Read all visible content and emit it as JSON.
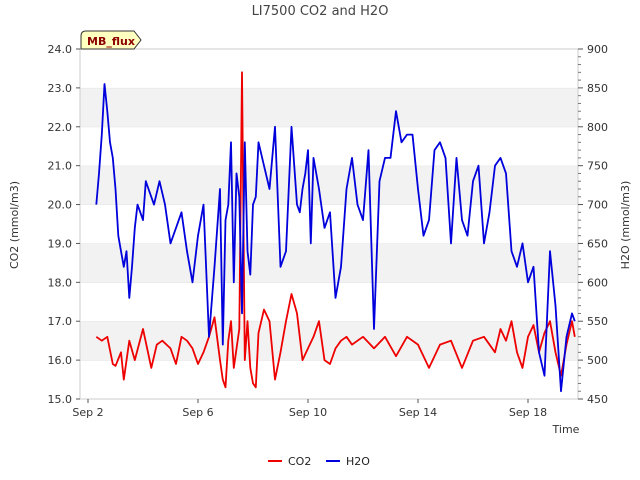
{
  "chart_data": {
    "type": "line",
    "title": "LI7500 CO2 and H2O",
    "badge": "MB_flux",
    "xlabel": "Time",
    "ylabel_left": "CO2 (mmol/m3)",
    "ylabel_right": "H2O (mmol/m3)",
    "x_unit": "days since Sep 2",
    "xlim": [
      0,
      18
    ],
    "x_ticks": [
      {
        "value": 0,
        "label": "Sep 2"
      },
      {
        "value": 4,
        "label": "Sep 6"
      },
      {
        "value": 8,
        "label": "Sep 10"
      },
      {
        "value": 12,
        "label": "Sep 14"
      },
      {
        "value": 16,
        "label": "Sep 18"
      }
    ],
    "ylim_left": [
      15.0,
      24.0
    ],
    "y_ticks_left": [
      "15.0",
      "16.0",
      "17.0",
      "18.0",
      "19.0",
      "20.0",
      "21.0",
      "22.0",
      "23.0",
      "24.0"
    ],
    "ylim_right": [
      450,
      900
    ],
    "y_ticks_right": [
      "450",
      "500",
      "550",
      "600",
      "650",
      "700",
      "750",
      "800",
      "850",
      "900"
    ],
    "grid": "horizontal bands",
    "legend_position": "bottom-center",
    "series": [
      {
        "name": "CO2",
        "color": "#ee0000",
        "axis": "left",
        "x": [
          0.3,
          0.5,
          0.7,
          0.9,
          1.0,
          1.2,
          1.3,
          1.5,
          1.7,
          2.0,
          2.3,
          2.5,
          2.7,
          3.0,
          3.2,
          3.4,
          3.6,
          3.8,
          4.0,
          4.2,
          4.4,
          4.6,
          4.8,
          4.9,
          5.0,
          5.1,
          5.2,
          5.3,
          5.5,
          5.6,
          5.7,
          5.8,
          5.9,
          6.0,
          6.1,
          6.2,
          6.4,
          6.6,
          6.8,
          7.0,
          7.2,
          7.4,
          7.6,
          7.8,
          8.0,
          8.2,
          8.4,
          8.6,
          8.8,
          9.0,
          9.2,
          9.4,
          9.6,
          9.8,
          10.0,
          10.4,
          10.8,
          11.2,
          11.6,
          12.0,
          12.4,
          12.8,
          13.2,
          13.6,
          14.0,
          14.4,
          14.8,
          15.0,
          15.2,
          15.4,
          15.6,
          15.8,
          16.0,
          16.2,
          16.4,
          16.6,
          16.8,
          17.0,
          17.2,
          17.4,
          17.6,
          17.7
        ],
        "values": [
          16.6,
          16.5,
          16.6,
          15.9,
          15.85,
          16.2,
          15.5,
          16.5,
          16.0,
          16.8,
          15.8,
          16.4,
          16.5,
          16.3,
          15.9,
          16.6,
          16.5,
          16.3,
          15.9,
          16.2,
          16.6,
          17.1,
          16.0,
          15.5,
          15.3,
          16.5,
          17.0,
          15.8,
          16.8,
          23.4,
          16.0,
          17.0,
          15.8,
          15.4,
          15.3,
          16.7,
          17.3,
          17.0,
          15.5,
          16.2,
          17.0,
          17.7,
          17.2,
          16.0,
          16.3,
          16.6,
          17.0,
          16.0,
          15.9,
          16.3,
          16.5,
          16.6,
          16.4,
          16.5,
          16.6,
          16.3,
          16.6,
          16.1,
          16.6,
          16.4,
          15.8,
          16.4,
          16.5,
          15.8,
          16.5,
          16.6,
          16.2,
          16.8,
          16.5,
          17.0,
          16.2,
          15.8,
          16.6,
          16.9,
          16.2,
          16.7,
          17.0,
          16.2,
          15.6,
          16.4,
          17.0,
          16.6
        ]
      },
      {
        "name": "H2O",
        "color": "#0000dd",
        "axis": "right",
        "x": [
          0.3,
          0.4,
          0.5,
          0.6,
          0.7,
          0.8,
          0.9,
          1.0,
          1.1,
          1.2,
          1.3,
          1.4,
          1.5,
          1.6,
          1.7,
          1.8,
          1.9,
          2.0,
          2.1,
          2.2,
          2.4,
          2.6,
          2.8,
          3.0,
          3.2,
          3.4,
          3.6,
          3.8,
          4.0,
          4.2,
          4.4,
          4.6,
          4.8,
          4.9,
          5.0,
          5.1,
          5.2,
          5.3,
          5.4,
          5.5,
          5.6,
          5.7,
          5.8,
          5.9,
          6.0,
          6.1,
          6.2,
          6.4,
          6.6,
          6.8,
          7.0,
          7.2,
          7.4,
          7.6,
          7.7,
          7.8,
          7.9,
          8.0,
          8.1,
          8.2,
          8.4,
          8.6,
          8.8,
          9.0,
          9.2,
          9.4,
          9.6,
          9.8,
          10.0,
          10.2,
          10.4,
          10.6,
          10.8,
          11.0,
          11.2,
          11.4,
          11.6,
          11.8,
          12.0,
          12.2,
          12.4,
          12.6,
          12.8,
          13.0,
          13.2,
          13.4,
          13.6,
          13.8,
          14.0,
          14.2,
          14.4,
          14.6,
          14.8,
          15.0,
          15.2,
          15.4,
          15.6,
          15.8,
          16.0,
          16.2,
          16.4,
          16.6,
          16.8,
          17.0,
          17.2,
          17.4,
          17.6,
          17.7
        ],
        "values": [
          700,
          740,
          790,
          855,
          820,
          780,
          760,
          720,
          660,
          640,
          620,
          640,
          580,
          620,
          670,
          700,
          690,
          680,
          730,
          720,
          700,
          730,
          700,
          650,
          670,
          690,
          640,
          600,
          660,
          700,
          530,
          620,
          720,
          520,
          680,
          700,
          780,
          600,
          740,
          710,
          560,
          780,
          640,
          610,
          700,
          710,
          780,
          750,
          720,
          800,
          620,
          640,
          800,
          700,
          690,
          720,
          740,
          770,
          650,
          760,
          720,
          670,
          690,
          580,
          620,
          720,
          760,
          700,
          680,
          770,
          540,
          730,
          760,
          760,
          820,
          780,
          790,
          790,
          720,
          660,
          680,
          770,
          780,
          760,
          650,
          760,
          680,
          660,
          730,
          750,
          650,
          690,
          750,
          760,
          740,
          640,
          620,
          650,
          600,
          620,
          510,
          480,
          640,
          570,
          460,
          530,
          560,
          550
        ]
      }
    ]
  }
}
